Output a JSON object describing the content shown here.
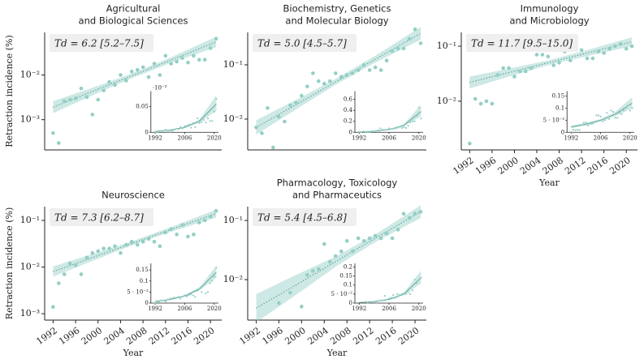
{
  "chart_data": [
    {
      "type": "scatter",
      "title": [
        "Agricultural",
        "and Biological Sciences"
      ],
      "annotation": "Td = 6.2 [5.2–7.5]",
      "ylabel": "Retraction incidence (%)",
      "log": true,
      "color": "#93cfc5",
      "x": [
        1992,
        1993,
        1994,
        1995,
        1996,
        1997,
        1998,
        1999,
        2000,
        2001,
        2002,
        2003,
        2004,
        2005,
        2006,
        2007,
        2008,
        2009,
        2010,
        2011,
        2012,
        2013,
        2014,
        2015,
        2016,
        2017,
        2018,
        2019,
        2020,
        2021
      ],
      "values": [
        0.0005,
        0.0003,
        0.0026,
        0.0028,
        0.003,
        0.005,
        0.0032,
        0.0013,
        0.0028,
        0.0045,
        0.007,
        0.006,
        0.01,
        0.0075,
        0.012,
        0.013,
        0.015,
        0.009,
        0.018,
        0.01,
        0.027,
        0.018,
        0.02,
        0.024,
        0.019,
        0.027,
        0.022,
        0.022,
        0.04,
        0.065
      ],
      "xlim": [
        1990.5,
        2022
      ],
      "ylim": [
        0.00021,
        0.09
      ],
      "yticks": [
        {
          "value": 0.001,
          "label": "10⁻³"
        },
        {
          "value": 0.01,
          "label": "10⁻²"
        }
      ],
      "fit": {
        "x": [
          1992,
          1999,
          2006,
          2013,
          2021
        ],
        "values": [
          0.0019,
          0.0043,
          0.0096,
          0.0217,
          0.055
        ],
        "lower": [
          0.0014,
          0.0035,
          0.0085,
          0.0188,
          0.042
        ],
        "upper": [
          0.0026,
          0.0052,
          0.0108,
          0.025,
          0.072
        ]
      },
      "inset": {
        "xlim": [
          1990,
          2022
        ],
        "xticks": [
          1992,
          2006,
          2020
        ],
        "ylim": [
          0,
          0.08
        ],
        "yticks": [
          0,
          0.05
        ],
        "offset_text": "·10⁻²"
      }
    },
    {
      "type": "scatter",
      "title": [
        "Biochemistry, Genetics",
        "and Molecular Biology"
      ],
      "annotation": "Td = 5.0 [4.5–5.7]",
      "log": true,
      "color": "#93cfc5",
      "x": [
        1992,
        1993,
        1994,
        1995,
        1996,
        1997,
        1998,
        1999,
        2000,
        2001,
        2002,
        2003,
        2004,
        2005,
        2006,
        2007,
        2008,
        2009,
        2010,
        2011,
        2012,
        2013,
        2014,
        2015,
        2016,
        2017,
        2018,
        2019,
        2020,
        2021
      ],
      "values": [
        0.007,
        0.0055,
        0.016,
        0.003,
        0.011,
        0.009,
        0.018,
        0.02,
        0.027,
        0.04,
        0.07,
        0.05,
        0.045,
        0.05,
        0.07,
        0.06,
        0.065,
        0.07,
        0.08,
        0.1,
        0.08,
        0.09,
        0.08,
        0.12,
        0.18,
        0.2,
        0.2,
        0.3,
        0.45,
        0.25
      ],
      "xlim": [
        1990.5,
        2022
      ],
      "ylim": [
        0.0027,
        0.396
      ],
      "yticks": [
        {
          "value": 0.01,
          "label": "10⁻²"
        },
        {
          "value": 0.1,
          "label": "10⁻¹"
        }
      ],
      "fit": {
        "x": [
          1992,
          1999,
          2006,
          2013,
          2021
        ],
        "values": [
          0.007,
          0.0184,
          0.0485,
          0.127,
          0.38
        ],
        "lower": [
          0.0052,
          0.015,
          0.043,
          0.11,
          0.29
        ],
        "upper": [
          0.0095,
          0.0225,
          0.055,
          0.147,
          0.5
        ]
      },
      "inset": {
        "xlim": [
          1990,
          2022
        ],
        "xticks": [
          1992,
          2006,
          2020
        ],
        "ylim": [
          0,
          0.75
        ],
        "yticks": [
          0,
          0.2,
          0.4,
          0.6
        ]
      }
    },
    {
      "type": "scatter",
      "title": [
        "Immunology",
        "and Microbiology"
      ],
      "annotation": "Td = 11.7 [9.5–15.0]",
      "xlabel": "Year",
      "log": true,
      "color": "#93cfc5",
      "x": [
        1992,
        1993,
        1994,
        1995,
        1996,
        1997,
        1998,
        1999,
        2000,
        2001,
        2002,
        2003,
        2004,
        2005,
        2006,
        2007,
        2008,
        2009,
        2010,
        2011,
        2012,
        2013,
        2014,
        2015,
        2016,
        2017,
        2018,
        2019,
        2020,
        2021
      ],
      "values": [
        0.0017,
        0.011,
        0.009,
        0.01,
        0.009,
        0.03,
        0.04,
        0.04,
        0.028,
        0.035,
        0.035,
        0.04,
        0.07,
        0.07,
        0.065,
        0.045,
        0.05,
        0.08,
        0.055,
        0.09,
        0.085,
        0.06,
        0.06,
        0.08,
        0.075,
        0.09,
        0.1,
        0.11,
        0.09,
        0.1
      ],
      "xlim": [
        1990.5,
        2022
      ],
      "ylim": [
        0.0013,
        0.178
      ],
      "yticks": [
        {
          "value": 0.01,
          "label": "10⁻²"
        },
        {
          "value": 0.1,
          "label": "10⁻¹"
        }
      ],
      "xticks": [
        1992,
        1996,
        2000,
        2004,
        2008,
        2012,
        2016,
        2020
      ],
      "fit": {
        "x": [
          1992,
          1999,
          2006,
          2013,
          2021
        ],
        "values": [
          0.022,
          0.0331,
          0.0499,
          0.075,
          0.12
        ],
        "lower": [
          0.017,
          0.028,
          0.045,
          0.066,
          0.1
        ],
        "upper": [
          0.028,
          0.039,
          0.055,
          0.085,
          0.145
        ]
      },
      "inset": {
        "xlim": [
          1990,
          2022
        ],
        "xticks": [
          1992,
          2006,
          2020
        ],
        "ylim": [
          0,
          0.17
        ],
        "yticks": [
          0,
          {
            "value": 0.05,
            "label": "5 · 10⁻²"
          },
          0.1,
          0.15
        ]
      }
    },
    {
      "type": "scatter",
      "title": [
        "Neuroscience"
      ],
      "annotation": "Td = 7.3 [6.2–8.7]",
      "ylabel": "Retraction incidence (%)",
      "xlabel": "Year",
      "log": true,
      "color": "#93cfc5",
      "x": [
        1992,
        1993,
        1994,
        1995,
        1996,
        1997,
        1998,
        1999,
        2000,
        2001,
        2002,
        2003,
        2004,
        2005,
        2006,
        2007,
        2008,
        2009,
        2010,
        2011,
        2012,
        2013,
        2014,
        2015,
        2016,
        2017,
        2018,
        2019,
        2020,
        2021
      ],
      "values": [
        0.0014,
        0.0045,
        0.007,
        0.012,
        0.011,
        0.007,
        0.016,
        0.02,
        0.022,
        0.025,
        0.025,
        0.028,
        0.02,
        0.03,
        0.035,
        0.03,
        0.035,
        0.04,
        0.035,
        0.028,
        0.055,
        0.065,
        0.05,
        0.08,
        0.045,
        0.05,
        0.09,
        0.1,
        0.12,
        0.16
      ],
      "xlim": [
        1990.5,
        2022
      ],
      "ylim": [
        0.00073,
        0.197
      ],
      "yticks": [
        {
          "value": 0.001,
          "label": "10⁻³"
        },
        {
          "value": 0.01,
          "label": "10⁻²"
        },
        {
          "value": 0.1,
          "label": "10⁻¹"
        }
      ],
      "xticks": [
        1992,
        1996,
        2000,
        2004,
        2008,
        2012,
        2016,
        2020
      ],
      "fit": {
        "x": [
          1992,
          1999,
          2006,
          2013,
          2021
        ],
        "values": [
          0.008,
          0.016,
          0.032,
          0.064,
          0.14
        ],
        "lower": [
          0.0062,
          0.0135,
          0.029,
          0.057,
          0.115
        ],
        "upper": [
          0.0103,
          0.019,
          0.0355,
          0.072,
          0.17
        ]
      },
      "inset": {
        "xlim": [
          1990,
          2022
        ],
        "xticks": [
          1992,
          2006,
          2020
        ],
        "ylim": [
          0,
          0.18
        ],
        "yticks": [
          0,
          {
            "value": 0.05,
            "label": "5 · 10⁻²"
          },
          0.1,
          0.15
        ]
      }
    },
    {
      "type": "scatter",
      "title": [
        "Pharmacology, Toxicology",
        "and Pharmaceutics"
      ],
      "annotation": "Td = 5.4 [4.5–6.8]",
      "xlabel": "Year",
      "log": true,
      "color": "#93cfc5",
      "x": [
        1992,
        1993,
        1994,
        1995,
        1996,
        1997,
        1998,
        1999,
        2000,
        2001,
        2002,
        2003,
        2004,
        2005,
        2006,
        2007,
        2008,
        2009,
        2010,
        2011,
        2012,
        2013,
        2014,
        2015,
        2016,
        2017,
        2018,
        2019,
        2020,
        2021
      ],
      "values": [
        null,
        null,
        null,
        null,
        0.004,
        null,
        0.006,
        null,
        0.0035,
        0.012,
        0.014,
        0.015,
        0.04,
        0.02,
        0.025,
        0.03,
        0.045,
        0.03,
        0.05,
        0.045,
        0.05,
        0.055,
        0.05,
        0.06,
        0.05,
        0.07,
        0.13,
        0.11,
        0.13,
        0.14
      ],
      "xlim": [
        1990.5,
        2022
      ],
      "ylim": [
        0.00207,
        0.171
      ],
      "yticks": [
        {
          "value": 0.01,
          "label": "10⁻²"
        },
        {
          "value": 0.1,
          "label": "10⁻¹"
        }
      ],
      "xticks": [
        1992,
        1996,
        2000,
        2004,
        2008,
        2012,
        2016,
        2020
      ],
      "fit": {
        "x": [
          1992,
          1999,
          2006,
          2013,
          2021
        ],
        "values": [
          0.0033,
          0.0081,
          0.0202,
          0.05,
          0.14
        ],
        "lower": [
          0.0019,
          0.0055,
          0.0165,
          0.043,
          0.11
        ],
        "upper": [
          0.0057,
          0.012,
          0.0245,
          0.058,
          0.18
        ]
      },
      "inset": {
        "xlim": [
          1990,
          2022
        ],
        "xticks": [
          1992,
          2006,
          2020
        ],
        "ylim": [
          0,
          0.22
        ],
        "yticks": [
          0,
          {
            "value": 0.05,
            "label": "5 · 10⁻²"
          },
          0.1,
          0.15,
          0.2
        ]
      }
    }
  ]
}
